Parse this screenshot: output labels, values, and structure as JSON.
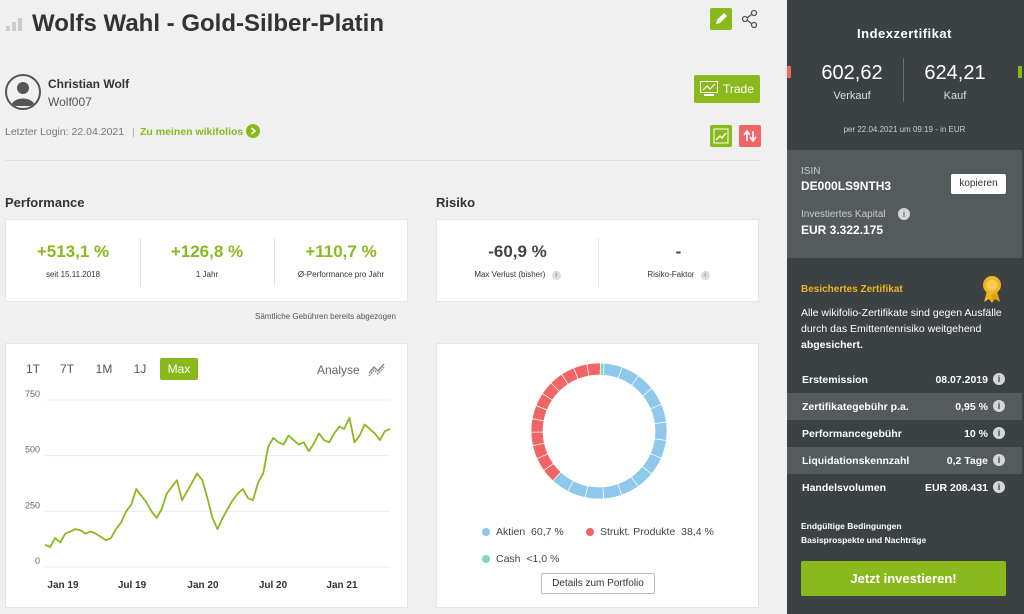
{
  "header": {
    "title": "Wolfs Wahl - Gold-Silber-Platin"
  },
  "trader": {
    "name": "Christian Wolf",
    "handle": "Wolf007",
    "last_login_label": "Letzter Login: 22.04.2021",
    "separator": "|",
    "my_wikifolios": "Zu meinen wikifolios",
    "trade_label": "Trade"
  },
  "performance": {
    "title": "Performance",
    "metrics": [
      {
        "value": "+513,1 %",
        "label": "seit 15.11.2018"
      },
      {
        "value": "+126,8 %",
        "label": "1 Jahr"
      },
      {
        "value": "+110,7 %",
        "label": "Ø-Performance pro Jahr"
      }
    ],
    "note": "Sämtliche Gebühren bereits abgezogen"
  },
  "risk": {
    "title": "Risiko",
    "metrics": [
      {
        "value": "-60,9 %",
        "label": "Max Verlust (bisher)"
      },
      {
        "value": "-",
        "label": "Risiko-Faktor"
      }
    ]
  },
  "chart": {
    "tabs": [
      "1T",
      "7T",
      "1M",
      "1J",
      "Max"
    ],
    "active_tab": "Max",
    "analyse_label": "Analyse",
    "chart_data": {
      "type": "line",
      "x_labels": [
        "Jan 19",
        "Jul 19",
        "Jan 20",
        "Jul 20",
        "Jan 21"
      ],
      "y_ticks": [
        0,
        250,
        500,
        750
      ],
      "ylim": [
        0,
        750
      ],
      "grid": true,
      "series": [
        {
          "values": [
            100,
            90,
            130,
            110,
            150,
            160,
            170,
            165,
            150,
            160,
            150,
            135,
            120,
            130,
            170,
            200,
            250,
            280,
            350,
            320,
            290,
            250,
            220,
            260,
            330,
            360,
            390,
            300,
            340,
            380,
            420,
            390,
            310,
            220,
            170,
            220,
            260,
            300,
            330,
            350,
            310,
            300,
            380,
            420,
            540,
            580,
            560,
            550,
            590,
            570,
            550,
            560,
            520,
            555,
            600,
            570,
            560,
            600,
            630,
            620,
            670,
            560,
            590,
            640,
            620,
            600,
            570,
            610,
            620
          ]
        }
      ]
    }
  },
  "portfolio": {
    "legend": [
      {
        "label": "Aktien",
        "value": "60,7 %",
        "color": "#8ec8ea"
      },
      {
        "label": "Strukt. Produkte",
        "value": "38,4 %",
        "color": "#f26565"
      },
      {
        "label": "Cash",
        "value": "<1,0 %",
        "color": "#7fd9b6"
      }
    ],
    "details_button": "Details zum Portfolio",
    "chart_data": {
      "type": "pie",
      "categories": [
        "Aktien",
        "Strukt. Produkte",
        "Cash"
      ],
      "values": [
        60.7,
        38.4,
        0.9
      ]
    }
  },
  "sidebar": {
    "title": "Indexzertifikat",
    "sell_value": "602,62",
    "sell_label": "Verkauf",
    "buy_value": "624,21",
    "buy_label": "Kauf",
    "quote_time": "per 22.04.2021 um 09:19 - in EUR",
    "isin_label": "ISIN",
    "isin": "DE000LS9NTH3",
    "copy_button": "kopieren",
    "capital_label": "Investiertes Kapital",
    "capital": "EUR 3.322.175",
    "secured_title": "Besichertes Zertifikat",
    "secured_text": "Alle wikifolio-Zertifikate sind gegen Ausfälle durch das Emittentenrisiko weitgehend",
    "secured_bold": "abgesichert.",
    "rows": [
      {
        "key": "Erstemission",
        "value": "08.07.2019"
      },
      {
        "key": "Zertifikategebühr p.a.",
        "value": "0,95 %"
      },
      {
        "key": "Performancegebühr",
        "value": "10 %"
      },
      {
        "key": "Liquidationskennzahl",
        "value": "0,2 Tage"
      },
      {
        "key": "Handelsvolumen",
        "value": "EUR 208.431"
      }
    ],
    "link1": "Endgültige Bedingungen",
    "link2": "Basisprospekte und Nachträge",
    "invest_button": "Jetzt investieren!",
    "info_glyph": "i"
  }
}
